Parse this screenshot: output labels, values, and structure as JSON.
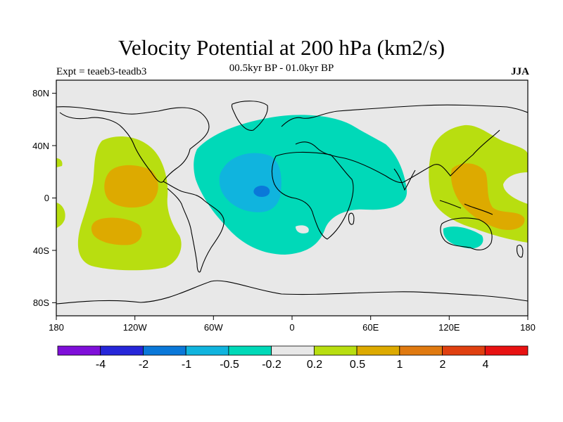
{
  "chart_data": {
    "type": "heatmap",
    "title": "Velocity Potential at 200 hPa (km2/s)",
    "subtitle": "00.5kyr BP - 01.0kyr BP",
    "left_string": "Expt = teaeb3-teadb3",
    "right_string": "JJA",
    "x_ticks": [
      "180",
      "120W",
      "60W",
      "0",
      "60E",
      "120E",
      "180"
    ],
    "y_ticks": [
      "80N",
      "40N",
      "0",
      "40S",
      "80S"
    ],
    "x_range_lon": [
      -180,
      180
    ],
    "y_range_lat": [
      -90,
      90
    ],
    "colorbar": {
      "levels": [
        "-4",
        "-2",
        "-1",
        "-0.5",
        "-0.2",
        "0.2",
        "0.5",
        "1",
        "2",
        "4"
      ],
      "colors": [
        "#7f0fd9",
        "#2626d9",
        "#0a78d9",
        "#10b4de",
        "#00d9b8",
        "#e8e8e8",
        "#b8de10",
        "#ddaa00",
        "#e07a10",
        "#e04010",
        "#e81212"
      ]
    },
    "regions": [
      {
        "name": "Atlantic/Africa negative anomaly",
        "level": "-0.2 to -0.5",
        "center_lon": -20,
        "center_lat": 10
      },
      {
        "name": "Atlantic core",
        "level": "-0.5 to -1",
        "center_lon": -22,
        "center_lat": 5
      },
      {
        "name": "West Pacific positive anomaly",
        "level": "0.2 to 1",
        "center_lon": 140,
        "center_lat": 10
      },
      {
        "name": "East Pacific positive anomaly",
        "level": "0.2 to 1",
        "center_lon": -135,
        "center_lat": 0
      }
    ]
  }
}
